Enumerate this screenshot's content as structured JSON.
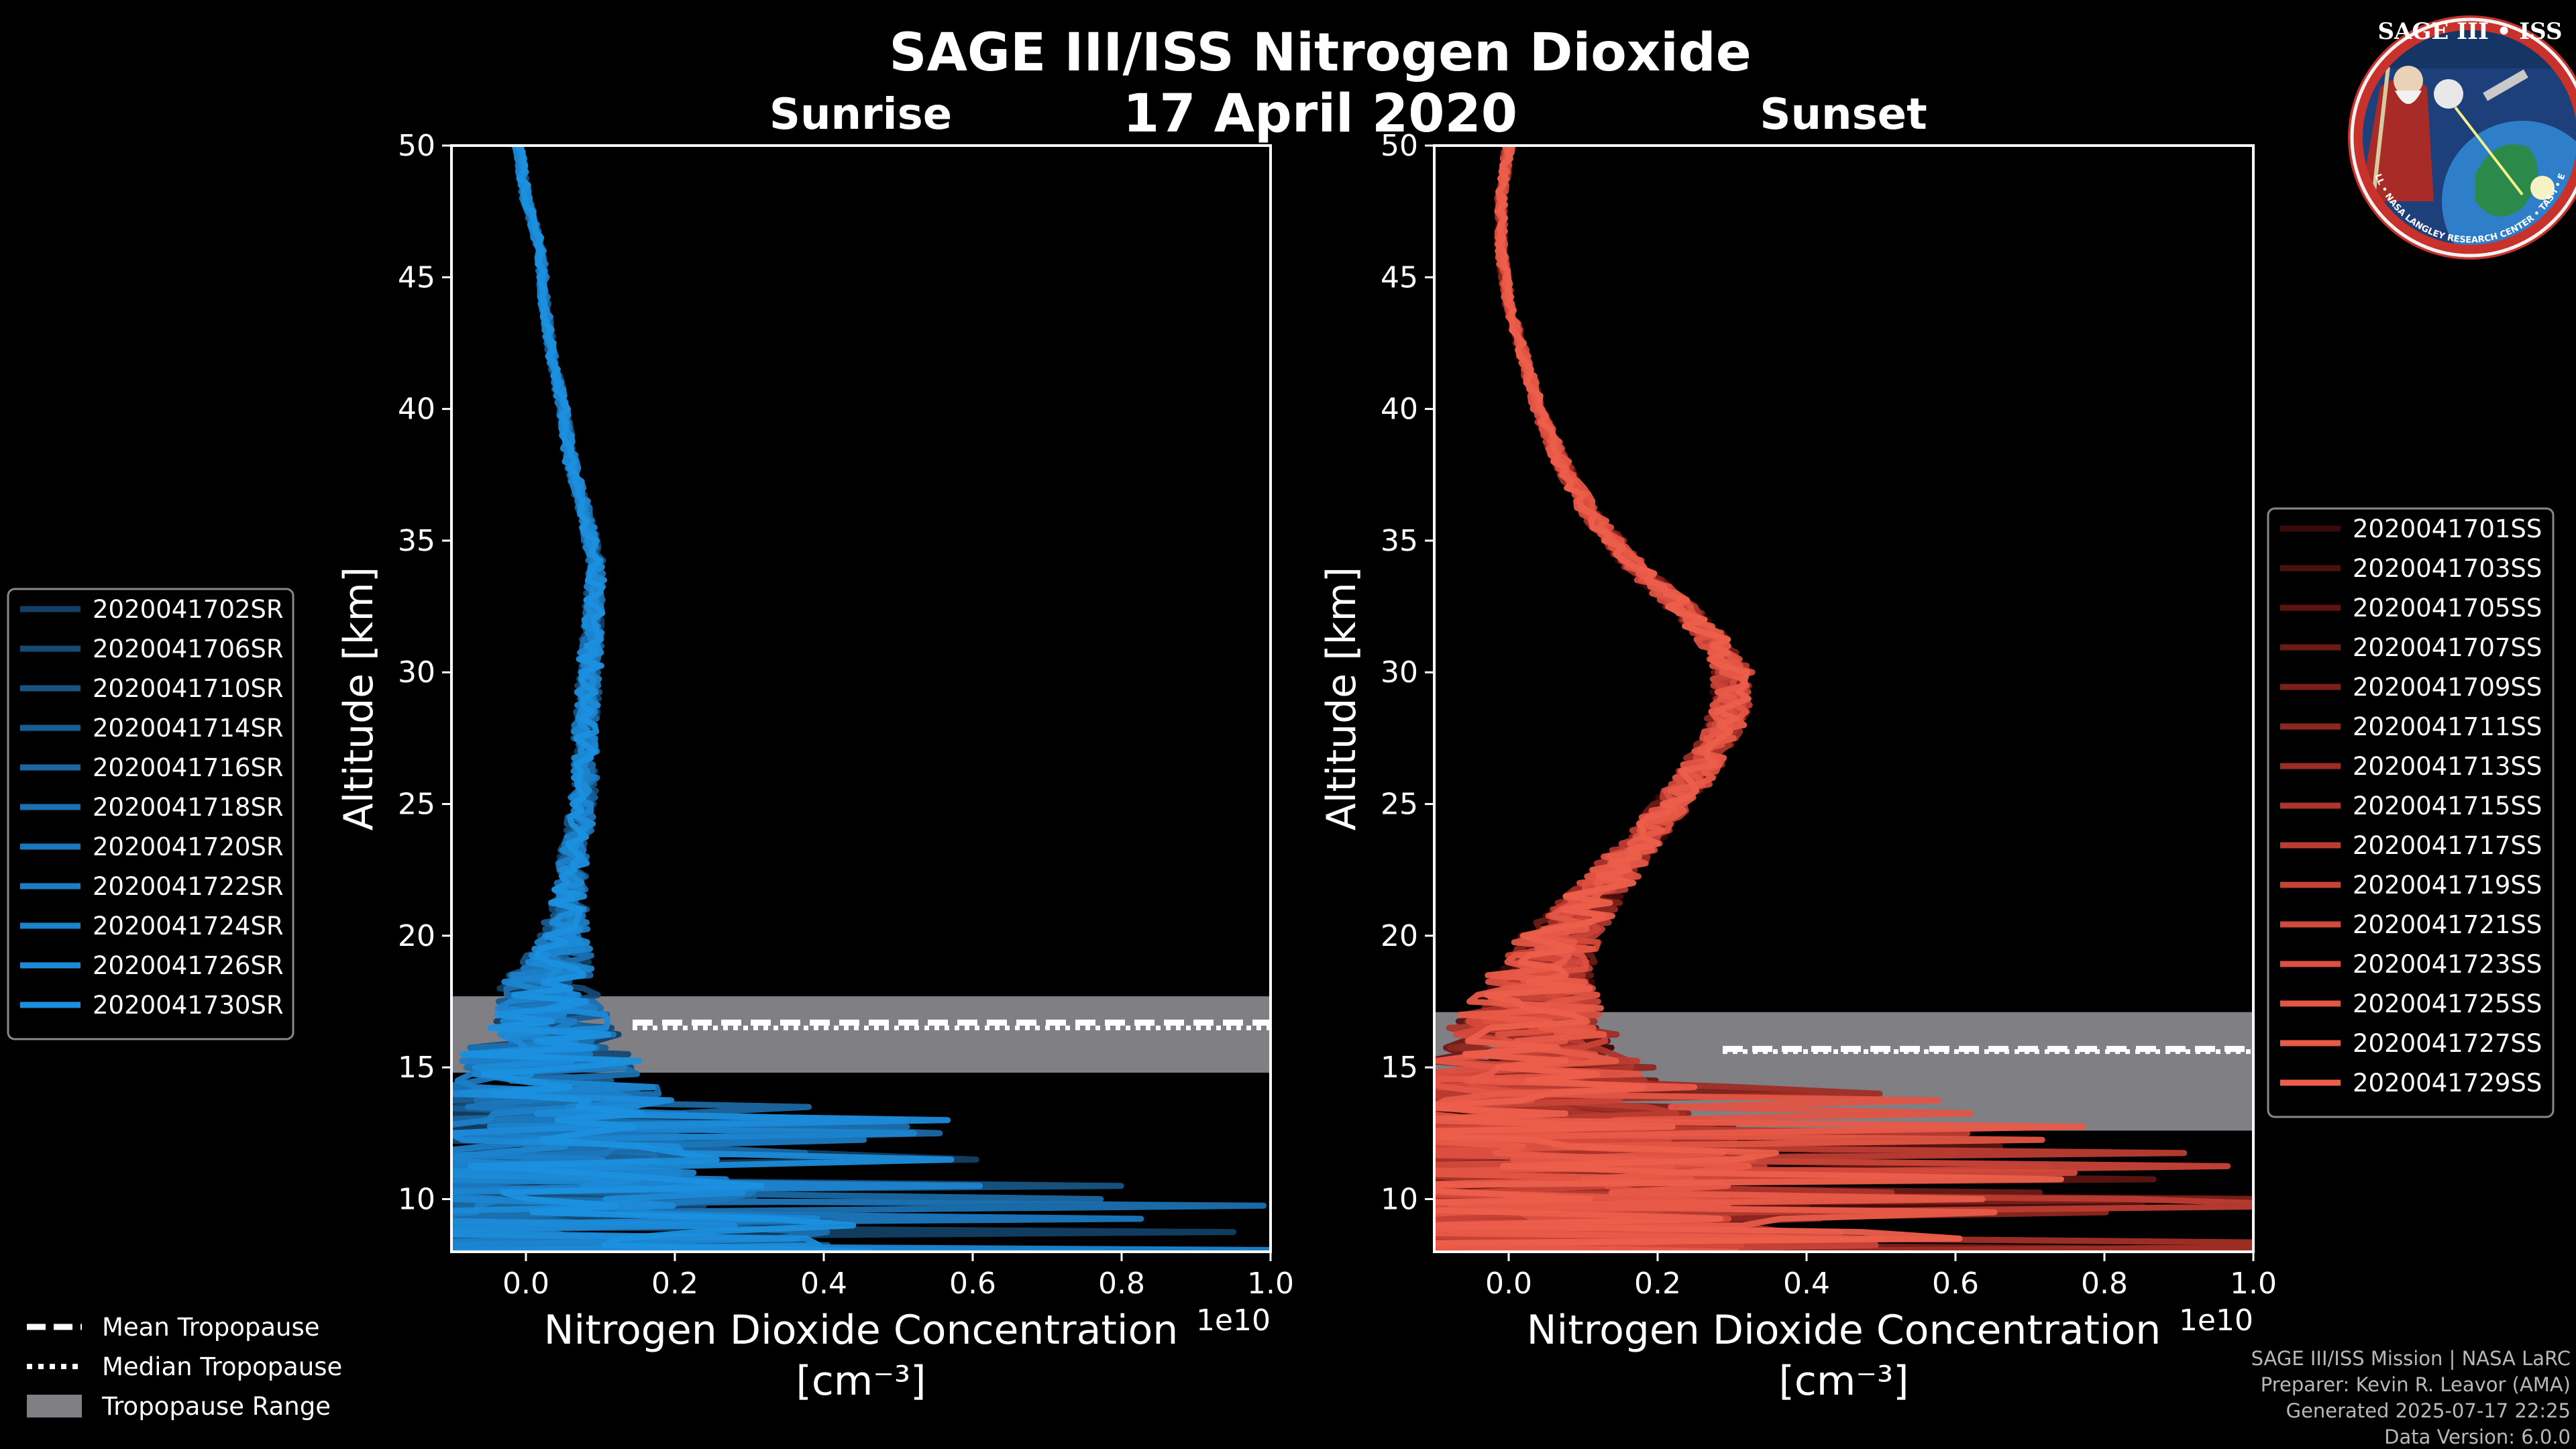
{
  "title": "SAGE III/ISS Nitrogen Dioxide",
  "date": "17 April 2020",
  "colors": {
    "sunrise": "#1a8ed0",
    "sunset": "#e85a48",
    "tropopause_band": "#7f7f84"
  },
  "logo": {
    "text": "SAGE III • ISS",
    "ring_text": "BALL • NASA LANGLEY RESEARCH CENTER • TAS-I • ESA",
    "icon": "mission-patch-icon"
  },
  "chart_data": [
    {
      "type": "line",
      "panel": "Sunrise",
      "title": "Sunrise",
      "xlabel": "Nitrogen Dioxide Concentration",
      "xlabel_units": "[cm⁻³]",
      "x_offset_label": "1e10",
      "ylabel": "Altitude [km]",
      "xlim": [
        -0.1,
        1.0
      ],
      "ylim": [
        8,
        50
      ],
      "xticks": [
        "0.0",
        "0.2",
        "0.4",
        "0.6",
        "0.8",
        "1.0"
      ],
      "yticks": [
        "10",
        "15",
        "20",
        "25",
        "30",
        "35",
        "40",
        "45",
        "50"
      ],
      "tropopause": {
        "mean_km": 16.7,
        "median_km": 16.5,
        "range_km": [
          14.8,
          17.7
        ]
      },
      "profile_shape": {
        "altitude_km": [
          8,
          9,
          10,
          11,
          12,
          13,
          14,
          15,
          16,
          17,
          18,
          19,
          20,
          22,
          24,
          26,
          28,
          30,
          32,
          34,
          36,
          38,
          40,
          42,
          44,
          46,
          48,
          50
        ],
        "no2_1e10": [
          0.02,
          0.02,
          0.02,
          0.025,
          0.03,
          0.03,
          0.03,
          0.03,
          0.03,
          0.03,
          0.03,
          0.04,
          0.05,
          0.06,
          0.07,
          0.08,
          0.08,
          0.085,
          0.09,
          0.095,
          0.08,
          0.06,
          0.05,
          0.035,
          0.025,
          0.02,
          0.0,
          -0.01
        ],
        "noise_1e10": [
          0.9,
          0.8,
          0.55,
          0.45,
          0.4,
          0.35,
          0.3,
          0.25,
          0.18,
          0.15,
          0.12,
          0.09,
          0.06,
          0.04,
          0.035,
          0.03,
          0.03,
          0.03,
          0.025,
          0.02,
          0.015,
          0.015,
          0.012,
          0.01,
          0.01,
          0.01,
          0.01,
          0.01
        ]
      },
      "series": [
        {
          "name": "2020041702SR",
          "color": "#123f63"
        },
        {
          "name": "2020041706SR",
          "color": "#154a73"
        },
        {
          "name": "2020041710SR",
          "color": "#175483"
        },
        {
          "name": "2020041714SR",
          "color": "#195e93"
        },
        {
          "name": "2020041716SR",
          "color": "#1a67a2"
        },
        {
          "name": "2020041718SR",
          "color": "#1b70b0"
        },
        {
          "name": "2020041720SR",
          "color": "#1b77bd"
        },
        {
          "name": "2020041722SR",
          "color": "#1c7ec7"
        },
        {
          "name": "2020041724SR",
          "color": "#1c84cf"
        },
        {
          "name": "2020041726SR",
          "color": "#1c8ad7"
        },
        {
          "name": "2020041730SR",
          "color": "#1b90de"
        }
      ]
    },
    {
      "type": "line",
      "panel": "Sunset",
      "title": "Sunset",
      "xlabel": "Nitrogen Dioxide Concentration",
      "xlabel_units": "[cm⁻³]",
      "x_offset_label": "1e10",
      "ylabel": "Altitude [km]",
      "xlim": [
        -0.1,
        1.0
      ],
      "ylim": [
        8,
        50
      ],
      "xticks": [
        "0.0",
        "0.2",
        "0.4",
        "0.6",
        "0.8",
        "1.0"
      ],
      "yticks": [
        "10",
        "15",
        "20",
        "25",
        "30",
        "35",
        "40",
        "45",
        "50"
      ],
      "tropopause": {
        "mean_km": 15.7,
        "median_km": 15.6,
        "range_km": [
          12.6,
          17.1
        ]
      },
      "profile_shape": {
        "altitude_km": [
          8,
          9,
          10,
          11,
          12,
          13,
          14,
          15,
          16,
          17,
          18,
          19,
          20,
          21,
          22,
          23,
          24,
          25,
          26,
          27,
          28,
          29,
          30,
          31,
          32,
          33,
          34,
          36,
          38,
          40,
          42,
          44,
          46,
          48,
          50
        ],
        "no2_1e10": [
          0.03,
          0.03,
          0.03,
          0.03,
          0.03,
          0.03,
          0.03,
          0.03,
          0.03,
          0.03,
          0.04,
          0.05,
          0.07,
          0.1,
          0.13,
          0.16,
          0.19,
          0.22,
          0.25,
          0.27,
          0.29,
          0.3,
          0.3,
          0.28,
          0.25,
          0.21,
          0.17,
          0.11,
          0.07,
          0.04,
          0.02,
          0.0,
          -0.01,
          -0.01,
          0.0
        ],
        "noise_1e10": [
          0.9,
          0.8,
          0.7,
          0.6,
          0.55,
          0.45,
          0.35,
          0.3,
          0.22,
          0.18,
          0.15,
          0.12,
          0.1,
          0.08,
          0.07,
          0.06,
          0.05,
          0.05,
          0.05,
          0.05,
          0.05,
          0.05,
          0.05,
          0.04,
          0.04,
          0.035,
          0.03,
          0.025,
          0.02,
          0.015,
          0.012,
          0.01,
          0.01,
          0.01,
          0.01
        ]
      },
      "series": [
        {
          "name": "2020041701SS",
          "color": "#3a0a0a"
        },
        {
          "name": "2020041703SS",
          "color": "#4b0f0d"
        },
        {
          "name": "2020041705SS",
          "color": "#5c1410"
        },
        {
          "name": "2020041707SS",
          "color": "#6d1a15"
        },
        {
          "name": "2020041709SS",
          "color": "#7e201a"
        },
        {
          "name": "2020041711SS",
          "color": "#8e271f"
        },
        {
          "name": "2020041713SS",
          "color": "#9e2e25"
        },
        {
          "name": "2020041715SS",
          "color": "#ad352b"
        },
        {
          "name": "2020041717SS",
          "color": "#bb3c31"
        },
        {
          "name": "2020041719SS",
          "color": "#c84337"
        },
        {
          "name": "2020041721SS",
          "color": "#d34a3c"
        },
        {
          "name": "2020041723SS",
          "color": "#dc5040"
        },
        {
          "name": "2020041725SS",
          "color": "#e35544"
        },
        {
          "name": "2020041727SS",
          "color": "#e85a48"
        },
        {
          "name": "2020041729SS",
          "color": "#ec5f4b"
        }
      ]
    }
  ],
  "tropopause_legend": [
    {
      "name": "Mean Tropopause",
      "style": "dashed"
    },
    {
      "name": "Median Tropopause",
      "style": "dotted"
    },
    {
      "name": "Tropopause Range",
      "style": "band"
    }
  ],
  "credits": [
    "SAGE III/ISS Mission | NASA LaRC",
    "Preparer: Kevin R. Leavor (AMA)",
    "Generated 2025-07-17 22:25",
    "Data Version: 6.0.0"
  ]
}
